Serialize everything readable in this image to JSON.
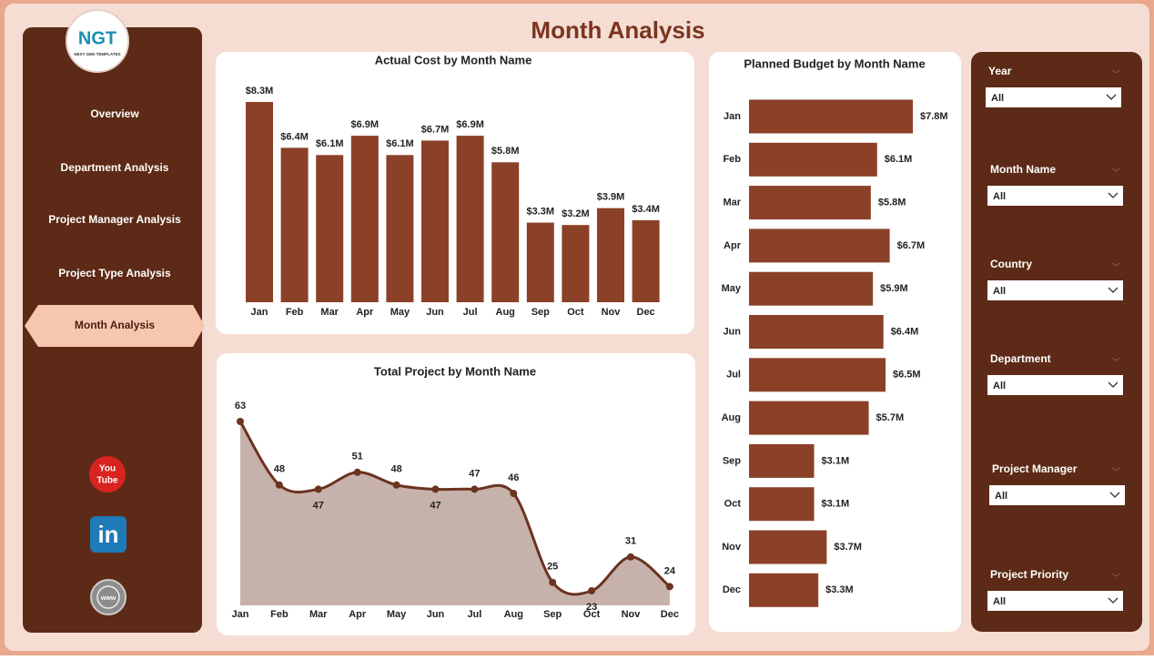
{
  "header": {
    "title": "Month Analysis"
  },
  "logo": {
    "mark": "NGT",
    "caption": "NEXT GEN TEMPLATES"
  },
  "nav": {
    "items": [
      "Overview",
      "Department Analysis",
      "Project Manager Analysis",
      "Project Type Analysis",
      "Month Analysis"
    ],
    "selected": "Month Analysis"
  },
  "social": {
    "youtube_top": "You",
    "youtube_bottom": "Tube",
    "linkedin": "in",
    "web": "www"
  },
  "filters": [
    {
      "label": "Year",
      "value": "All"
    },
    {
      "label": "Month Name",
      "value": "All"
    },
    {
      "label": "Country",
      "value": "All"
    },
    {
      "label": "Department",
      "value": "All"
    },
    {
      "label": "Project Manager",
      "value": "All"
    },
    {
      "label": "Project Priority",
      "value": "All"
    }
  ],
  "chart_data": [
    {
      "type": "bar",
      "title": "Actual Cost by Month Name",
      "color": "#8b4128",
      "categories": [
        "Jan",
        "Feb",
        "Mar",
        "Apr",
        "May",
        "Jun",
        "Jul",
        "Aug",
        "Sep",
        "Oct",
        "Nov",
        "Dec"
      ],
      "values": [
        8.3,
        6.4,
        6.1,
        6.9,
        6.1,
        6.7,
        6.9,
        5.8,
        3.3,
        3.2,
        3.9,
        3.4
      ],
      "value_labels": [
        "$8.3M",
        "$6.4M",
        "$6.1M",
        "$6.9M",
        "$6.1M",
        "$6.7M",
        "$6.9M",
        "$5.8M",
        "$3.3M",
        "$3.2M",
        "$3.9M",
        "$3.4M"
      ]
    },
    {
      "type": "area",
      "title": "Total Project by Month Name",
      "color": "#6b3320",
      "fill": "#c6b2aa",
      "categories": [
        "Jan",
        "Feb",
        "Mar",
        "Apr",
        "May",
        "Jun",
        "Jul",
        "Aug",
        "Sep",
        "Oct",
        "Nov",
        "Dec"
      ],
      "values": [
        63,
        48,
        47,
        51,
        48,
        47,
        47,
        46,
        25,
        23,
        31,
        24
      ]
    },
    {
      "type": "hbar",
      "title": "Planned Budget by Month Name",
      "color": "#8b4128",
      "categories": [
        "Jan",
        "Feb",
        "Mar",
        "Apr",
        "May",
        "Jun",
        "Jul",
        "Aug",
        "Sep",
        "Oct",
        "Nov",
        "Dec"
      ],
      "values": [
        7.8,
        6.1,
        5.8,
        6.7,
        5.9,
        6.4,
        6.5,
        5.7,
        3.1,
        3.1,
        3.7,
        3.3
      ],
      "value_labels": [
        "$7.8M",
        "$6.1M",
        "$5.8M",
        "$6.7M",
        "$5.9M",
        "$6.4M",
        "$6.5M",
        "$5.7M",
        "$3.1M",
        "$3.1M",
        "$3.7M",
        "$3.3M"
      ]
    }
  ]
}
